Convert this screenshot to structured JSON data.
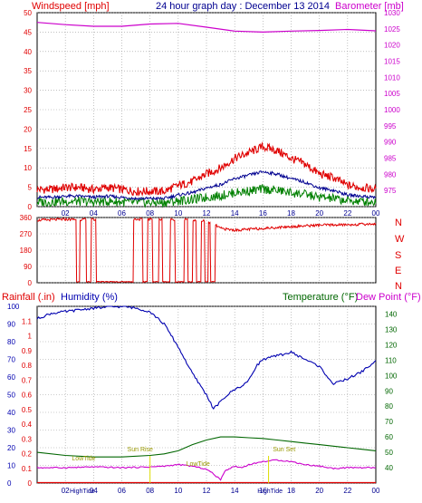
{
  "colors": {
    "wind": "#e00000",
    "wind_avg": "#000090",
    "gust_low": "#008000",
    "baro": "#cc00cc",
    "humidity": "#0000b0",
    "temp": "#006600",
    "dewpoint": "#cc00cc",
    "rain": "#e00000",
    "sun": "#dddd00"
  },
  "header": {
    "left": "Windspeed [mph]",
    "center": "24 hour graph day : December 13 2014",
    "right": "Barometer [mb]"
  },
  "panel3": {
    "rainfall": "Rainfall (.in)",
    "humidity": "Humidity (%)",
    "temperature": "Temperature (°F)",
    "dewpoint": "Dew Point (°F)"
  },
  "direction_labels": [
    "N",
    "W",
    "S",
    "E",
    "N"
  ],
  "events": {
    "high_tide_1": "HighTide",
    "low_tide_1": "LowTide",
    "sun_rise": "Sun Rise",
    "low_tide_2": "LowTide",
    "sun_set": "Sun Set",
    "high_tide_2": "HighTide"
  },
  "chart_data": [
    {
      "type": "line",
      "title": "24 hour graph day : December 13 2014",
      "ylabel": "Windspeed [mph]",
      "y2label": "Barometer [mb]",
      "x_ticks": [
        "02",
        "04",
        "06",
        "08",
        "10",
        "12",
        "14",
        "16",
        "18",
        "20",
        "22",
        "00"
      ],
      "ylim": [
        0,
        50
      ],
      "y_ticks": [
        0,
        5,
        10,
        15,
        20,
        25,
        30,
        35,
        40,
        45,
        50
      ],
      "y2lim": [
        970,
        1030
      ],
      "y2_ticks": [
        975,
        980,
        985,
        990,
        995,
        1000,
        1005,
        1010,
        1015,
        1020,
        1025,
        1030
      ],
      "grid": true,
      "series": [
        {
          "name": "Windspeed [mph]",
          "x": [
            0,
            1,
            2,
            3,
            4,
            5,
            6,
            7,
            8,
            9,
            10,
            11,
            12,
            13,
            14,
            15,
            16,
            17,
            18,
            19,
            20,
            21,
            22,
            23,
            24
          ],
          "values": [
            4,
            4,
            4.5,
            4.5,
            4,
            4.5,
            4,
            3.5,
            3.5,
            3.5,
            5,
            6,
            8,
            9.5,
            12,
            13.5,
            15,
            14,
            12,
            10.5,
            8,
            7,
            5,
            4.5,
            4
          ]
        },
        {
          "name": "Barometer [mb]",
          "x": [
            0,
            2,
            4,
            6,
            8,
            10,
            12,
            14,
            16,
            18,
            20,
            22,
            24
          ],
          "values": [
            1027,
            1026.3,
            1025.8,
            1025.8,
            1026.5,
            1026.7,
            1025.5,
            1024.3,
            1024,
            1024.3,
            1024.5,
            1024.8,
            1024.4
          ]
        }
      ]
    },
    {
      "type": "line",
      "title": "",
      "ylabel": "",
      "ylim": [
        0,
        360
      ],
      "y_ticks": [
        0,
        90,
        180,
        270,
        360
      ],
      "series": [
        {
          "name": "",
          "x": [
            0,
            2,
            4,
            6,
            8,
            10,
            12,
            12.5,
            13,
            14,
            16,
            18,
            20,
            22,
            24
          ],
          "values": [
            345,
            350,
            348,
            352,
            350,
            350,
            340,
            325,
            300,
            290,
            300,
            310,
            318,
            320,
            325
          ]
        }
      ]
    },
    {
      "type": "line",
      "title": "",
      "ylabel": "Humidity (%)",
      "y2label": "Temperature (°F)",
      "x_ticks": [
        "02",
        "04",
        "06",
        "08",
        "10",
        "12",
        "14",
        "16",
        "18",
        "20",
        "22",
        "00"
      ],
      "ylim": [
        0,
        100
      ],
      "y_ticks": [
        0,
        10,
        20,
        30,
        40,
        50,
        60,
        70,
        80,
        90,
        100
      ],
      "rain_ticks": [
        0,
        0.1,
        0.2,
        0.3,
        0.4,
        0.5,
        0.6,
        0.7,
        0.8,
        0.9,
        1,
        1.1
      ],
      "y2lim": [
        30,
        145
      ],
      "y2_ticks": [
        40,
        50,
        60,
        70,
        80,
        90,
        100,
        110,
        120,
        130,
        140
      ],
      "grid": true,
      "series": [
        {
          "name": "Humidity (%)",
          "x": [
            0,
            1,
            2,
            3,
            4,
            5,
            6,
            7,
            8,
            9,
            10,
            11,
            12,
            12.5,
            13,
            13.5,
            14,
            14.5,
            15,
            15.5,
            16,
            17,
            18,
            19,
            20,
            21,
            22,
            23,
            24
          ],
          "values": [
            93,
            96,
            97,
            98,
            99,
            99.5,
            100,
            99,
            97,
            90,
            77,
            62,
            50,
            42,
            46,
            50,
            53,
            55,
            58,
            66,
            70,
            72,
            74,
            70,
            66,
            56,
            59,
            63,
            69
          ]
        },
        {
          "name": "Temperature (°F)",
          "x": [
            0,
            2,
            4,
            6,
            8,
            9,
            10,
            11,
            12,
            13,
            14,
            15,
            16,
            17,
            18,
            19,
            20,
            21,
            22,
            23,
            24
          ],
          "values": [
            50,
            48,
            47,
            47,
            48,
            49,
            51,
            55,
            58,
            60,
            60,
            59.5,
            59,
            58,
            57,
            56,
            55,
            54,
            53,
            52,
            51
          ]
        },
        {
          "name": "Dew Point (°F)",
          "x": [
            0,
            2,
            4,
            6,
            8,
            9,
            10,
            11,
            12,
            12.5,
            13,
            13.3,
            14,
            14.5,
            15,
            16,
            17,
            18,
            19,
            20,
            21,
            22,
            23,
            24
          ],
          "values": [
            40,
            40,
            40.5,
            40,
            40.5,
            41,
            42,
            41,
            39,
            36,
            32,
            38,
            41,
            40,
            42,
            44,
            45,
            44,
            42,
            41,
            39.5,
            40,
            40,
            40
          ]
        },
        {
          "name": "Rainfall (.in)",
          "x": [
            0,
            24
          ],
          "values": [
            0,
            0
          ]
        }
      ]
    }
  ]
}
